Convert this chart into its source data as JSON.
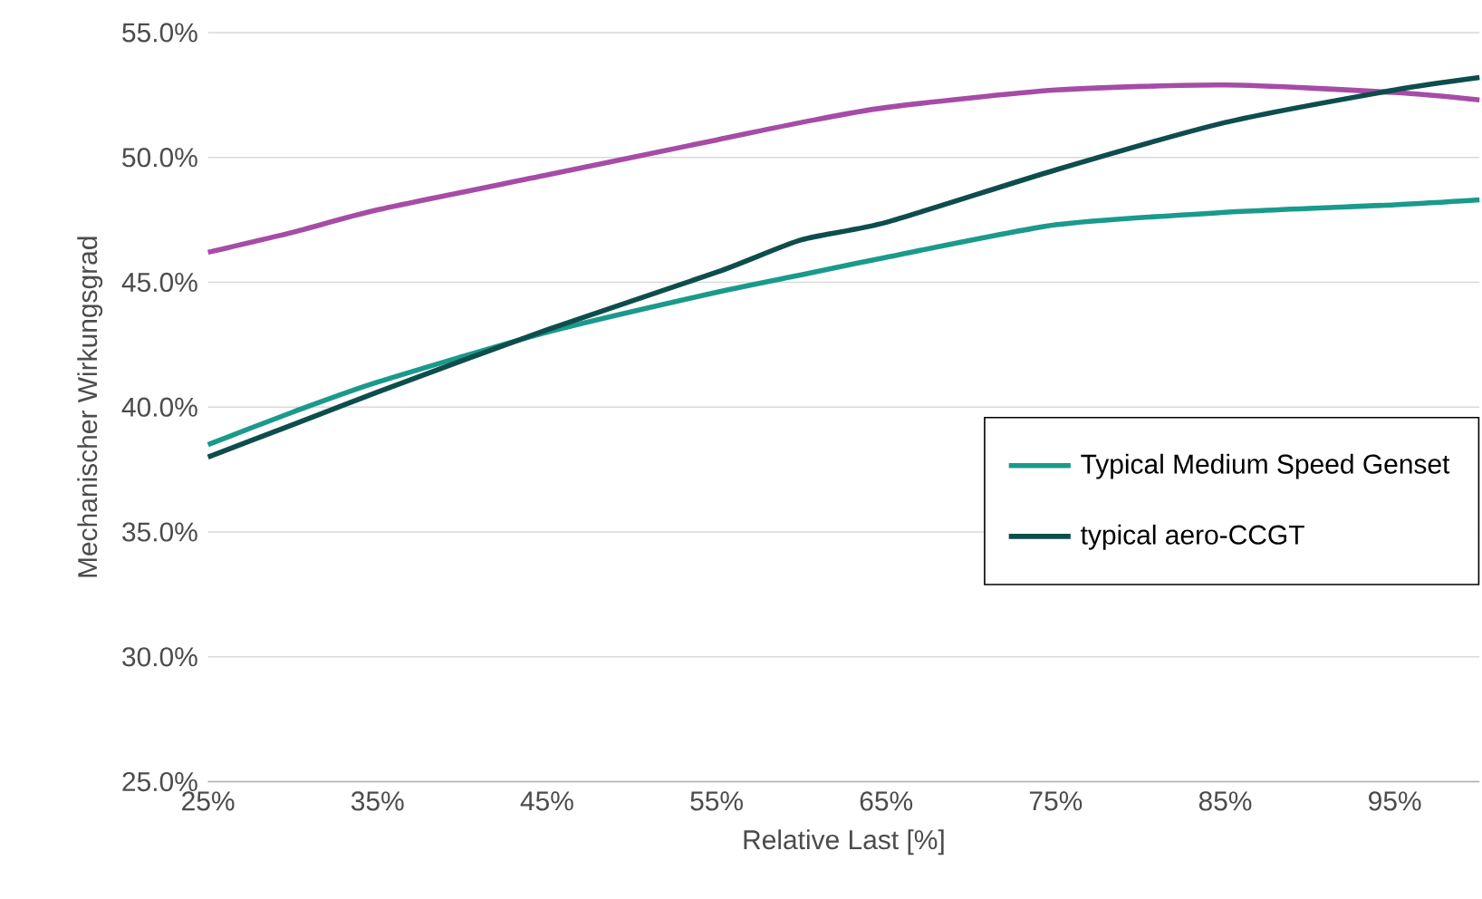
{
  "chart_data": {
    "type": "line",
    "xlabel": "Relative Last [%]",
    "ylabel": "Mechanischer Wirkungsgrad",
    "x": [
      25,
      30,
      35,
      45,
      55,
      60,
      65,
      75,
      85,
      95,
      100
    ],
    "series": [
      {
        "color": "#a64ca6",
        "values": [
          46.2,
          47.0,
          47.9,
          49.3,
          50.7,
          51.4,
          52.0,
          52.7,
          52.9,
          52.6,
          52.3
        ]
      },
      {
        "name": "Typical Medium Speed Genset",
        "color": "#1a9a8c",
        "values": [
          38.5,
          39.8,
          41.0,
          43.0,
          44.6,
          45.3,
          46.0,
          47.3,
          47.8,
          48.1,
          48.3
        ]
      },
      {
        "name": "typical aero-CCGT",
        "color": "#0e4d4d",
        "values": [
          38.0,
          39.3,
          40.6,
          43.1,
          45.4,
          46.7,
          47.4,
          49.5,
          51.4,
          52.7,
          53.2
        ]
      }
    ],
    "xlim": [
      25,
      100
    ],
    "xticks": [
      {
        "value": 25,
        "label": "25%"
      },
      {
        "value": 35,
        "label": "35%"
      },
      {
        "value": 45,
        "label": "45%"
      },
      {
        "value": 55,
        "label": "55%"
      },
      {
        "value": 65,
        "label": "65%"
      },
      {
        "value": 75,
        "label": "75%"
      },
      {
        "value": 85,
        "label": "85%"
      },
      {
        "value": 95,
        "label": "95%"
      }
    ],
    "ylim": [
      25,
      55
    ],
    "yticks": [
      {
        "value": 25,
        "label": "25.0%"
      },
      {
        "value": 30,
        "label": "30.0%"
      },
      {
        "value": 35,
        "label": "35.0%"
      },
      {
        "value": 40,
        "label": "40.0%"
      },
      {
        "value": 45,
        "label": "45.0%"
      },
      {
        "value": 50,
        "label": "50.0%"
      },
      {
        "value": 55,
        "label": "55.0%"
      }
    ],
    "grid": "y",
    "legend": "right",
    "marker": "none",
    "line_style": "solid"
  }
}
